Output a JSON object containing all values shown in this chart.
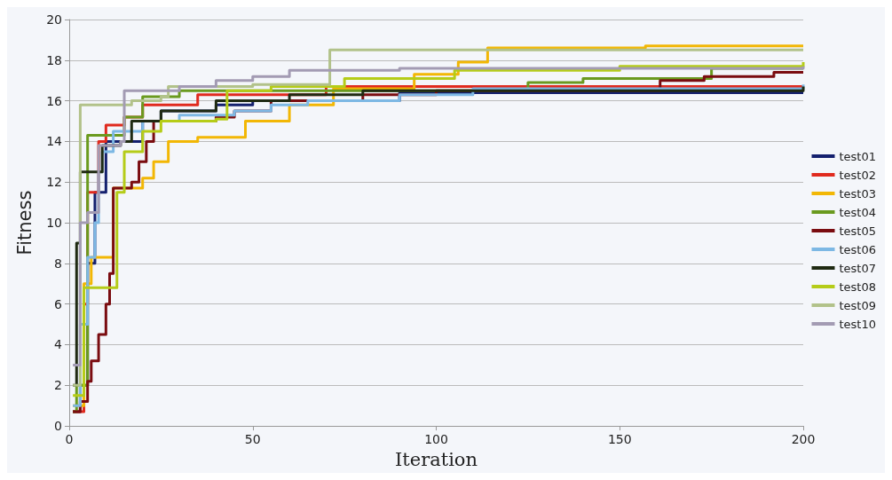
{
  "chart_data": {
    "type": "step",
    "xlabel": "Iteration",
    "ylabel": "Fitness",
    "xlim": [
      0,
      200
    ],
    "xticks": [
      0,
      50,
      100,
      150,
      200
    ],
    "ylim": [
      0,
      20
    ],
    "yticks": [
      0,
      2,
      4,
      6,
      8,
      10,
      12,
      14,
      16,
      18,
      20
    ],
    "grid": "y",
    "legend": "right",
    "marker": "none",
    "line_style": "solid",
    "series": [
      {
        "name": "test01",
        "color": "#14206e",
        "x": [
          1,
          3,
          5,
          7,
          10,
          20,
          25,
          40,
          50,
          90,
          200
        ],
        "values": [
          0.7,
          2,
          8,
          11.5,
          14,
          15,
          15.5,
          15.8,
          16,
          16.4,
          16.4
        ]
      },
      {
        "name": "test02",
        "color": "#e02a1e",
        "x": [
          1,
          4,
          5,
          8,
          10,
          15,
          20,
          35,
          70,
          200
        ],
        "values": [
          0.7,
          6,
          11.5,
          14,
          14.8,
          15.2,
          15.8,
          16.3,
          16.7,
          16.7
        ]
      },
      {
        "name": "test03",
        "color": "#f2b705",
        "x": [
          1,
          4,
          6,
          12,
          20,
          23,
          27,
          35,
          48,
          60,
          72,
          94,
          106,
          114,
          157,
          200
        ],
        "values": [
          1,
          7,
          8.3,
          11.7,
          12.2,
          13,
          14,
          14.2,
          15,
          15.8,
          16.6,
          17.3,
          17.9,
          18.6,
          18.7,
          18.7
        ]
      },
      {
        "name": "test04",
        "color": "#6a9a1f",
        "x": [
          1,
          2,
          5,
          15,
          20,
          30,
          125,
          140,
          175,
          200
        ],
        "values": [
          0.7,
          2,
          14.3,
          15.2,
          16.2,
          16.5,
          16.9,
          17.1,
          17.6,
          17.6
        ]
      },
      {
        "name": "test05",
        "color": "#7a0c10",
        "x": [
          1,
          3,
          5,
          6,
          8,
          10,
          11,
          12,
          17,
          19,
          21,
          23,
          40,
          45,
          55,
          80,
          100,
          161,
          173,
          192,
          200
        ],
        "values": [
          0.7,
          1.2,
          2.2,
          3.2,
          4.5,
          6,
          7.5,
          11.7,
          12,
          13,
          14,
          15,
          15.2,
          15.5,
          16,
          16.3,
          16.5,
          17,
          17.2,
          17.4,
          17.4
        ]
      },
      {
        "name": "test06",
        "color": "#7db8e4",
        "x": [
          1,
          3,
          5,
          7,
          8,
          9,
          12,
          20,
          30,
          45,
          55,
          65,
          90,
          110,
          200
        ],
        "values": [
          1,
          5,
          8.3,
          10,
          12.5,
          13.5,
          14.5,
          15,
          15.3,
          15.5,
          15.8,
          16,
          16.3,
          16.6,
          16.8
        ]
      },
      {
        "name": "test07",
        "color": "#1f2a12",
        "x": [
          1,
          2,
          3,
          9,
          14,
          17,
          25,
          40,
          60,
          80,
          200
        ],
        "values": [
          2,
          9,
          12.5,
          13.8,
          14,
          15,
          15.5,
          16,
          16.3,
          16.5,
          16.7
        ]
      },
      {
        "name": "test08",
        "color": "#b5cc18",
        "x": [
          1,
          4,
          13,
          15,
          20,
          25,
          40,
          43,
          55,
          75,
          105,
          150,
          200
        ],
        "values": [
          1.5,
          6.8,
          11.5,
          13.5,
          14.5,
          15,
          15.1,
          16.5,
          16.7,
          17.1,
          17.5,
          17.7,
          17.9
        ]
      },
      {
        "name": "test09",
        "color": "#b2c28a",
        "x": [
          1,
          3,
          17,
          25,
          27,
          50,
          71,
          200
        ],
        "values": [
          2,
          15.8,
          16,
          16.2,
          16.7,
          16.8,
          18.5,
          18.5
        ]
      },
      {
        "name": "test10",
        "color": "#a39bb3",
        "x": [
          1,
          3,
          5,
          8,
          14,
          15,
          30,
          40,
          50,
          60,
          90,
          200
        ],
        "values": [
          3,
          10,
          10.5,
          13.8,
          14,
          16.5,
          16.7,
          17,
          17.2,
          17.5,
          17.6,
          17.7
        ]
      }
    ]
  }
}
